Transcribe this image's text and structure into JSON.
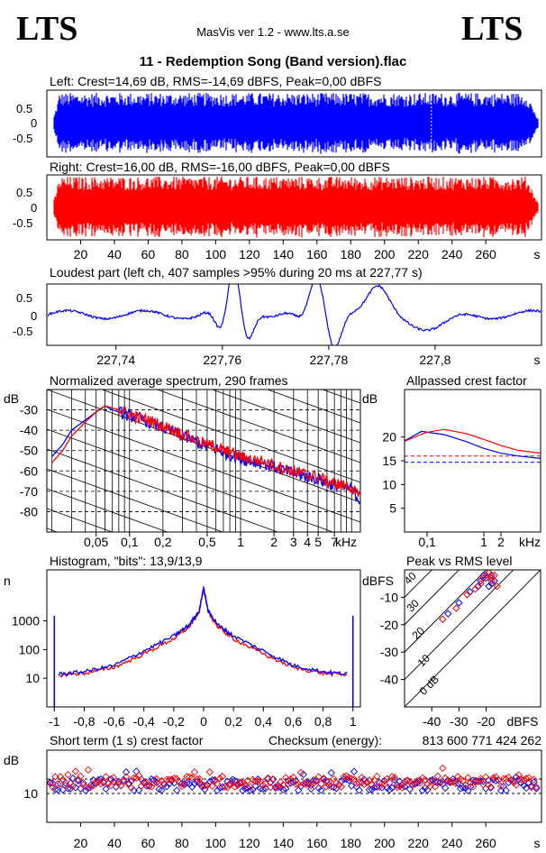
{
  "header": {
    "logo_left": "LTS",
    "logo_right": "LTS",
    "app_title": "MasVis ver 1.2 - www.lts.a.se",
    "track_title": "11 - Redemption Song (Band version).flac"
  },
  "colors": {
    "left": "#0000ff",
    "right": "#ff0000",
    "grid": "#000000",
    "background": "#ffffff"
  },
  "chart_data": [
    {
      "id": "left-waveform",
      "type": "area",
      "title": "Left: Crest=14,69 dB, RMS=-14,69 dBFS, Peak=0,00 dBFS",
      "crest_db": 14.69,
      "rms_dbfs": -14.69,
      "peak_dbfs": 0.0,
      "y_ticks": [
        "0.5",
        "0",
        "-0.5"
      ],
      "ylim": [
        -1,
        1
      ],
      "xlim": [
        0,
        293
      ],
      "marker_s": 227.77
    },
    {
      "id": "right-waveform",
      "type": "area",
      "title": "Right: Crest=16,00 dB, RMS=-16,00 dBFS, Peak=0,00 dBFS",
      "crest_db": 16.0,
      "rms_dbfs": -16.0,
      "peak_dbfs": 0.0,
      "y_ticks": [
        "0.5",
        "0",
        "-0.5"
      ],
      "ylim": [
        -1,
        1
      ],
      "x_ticks": [
        "20",
        "40",
        "60",
        "80",
        "100",
        "120",
        "140",
        "160",
        "180",
        "200",
        "220",
        "240",
        "260"
      ],
      "x_unit": "s",
      "xlim": [
        0,
        293
      ]
    },
    {
      "id": "loudest-part",
      "type": "line",
      "title": "Loudest part (left  ch, 407 samples >95% during 20 ms at 227,77 s)",
      "y_ticks": [
        "0.5",
        "0",
        "-0.5"
      ],
      "x_ticks": [
        "227,74",
        "227,76",
        "227,78",
        "227,8"
      ],
      "x_unit": "s",
      "xlim": [
        227.727,
        227.82
      ],
      "ylim": [
        -1,
        1
      ]
    },
    {
      "id": "spectrum",
      "type": "line",
      "title": "Normalized average spectrum, 290 frames",
      "ylabel": "dB",
      "y_ticks": [
        "-30",
        "-40",
        "-50",
        "-60",
        "-70",
        "-80"
      ],
      "x_ticks": [
        "0,05",
        "0,1",
        "0,2",
        "0,5",
        "1",
        "2",
        "3",
        "4",
        "5",
        "7"
      ],
      "x_unit": "kHz",
      "xscale": "log",
      "xlim": [
        0.018,
        12
      ],
      "ylim": [
        -90,
        -20
      ],
      "series": [
        {
          "name": "left",
          "x": [
            0.02,
            0.025,
            0.03,
            0.04,
            0.05,
            0.06,
            0.07,
            0.08,
            0.1,
            0.12,
            0.15,
            0.2,
            0.25,
            0.3,
            0.4,
            0.5,
            0.6,
            0.7,
            0.8,
            1.0,
            1.2,
            1.5,
            2,
            2.5,
            3,
            3.5,
            4,
            5,
            6,
            7,
            8,
            10,
            12
          ],
          "y": [
            -53,
            -47,
            -40,
            -35,
            -31,
            -28,
            -30,
            -31,
            -33,
            -34,
            -36,
            -39,
            -41,
            -43,
            -46,
            -48,
            -49,
            -51,
            -52,
            -54,
            -55,
            -56,
            -58,
            -60,
            -61,
            -62,
            -63,
            -64,
            -66,
            -67,
            -68,
            -69,
            -75
          ]
        },
        {
          "name": "right",
          "x": [
            0.02,
            0.025,
            0.03,
            0.04,
            0.05,
            0.06,
            0.07,
            0.08,
            0.1,
            0.12,
            0.15,
            0.2,
            0.25,
            0.3,
            0.4,
            0.5,
            0.6,
            0.7,
            0.8,
            1.0,
            1.2,
            1.5,
            2,
            2.5,
            3,
            3.5,
            4,
            5,
            6,
            7,
            8,
            10,
            12
          ],
          "y": [
            -56,
            -50,
            -43,
            -36,
            -31,
            -28,
            -29,
            -30,
            -32,
            -34,
            -35,
            -38,
            -40,
            -42,
            -45,
            -47,
            -48,
            -50,
            -51,
            -53,
            -54,
            -55,
            -57,
            -59,
            -60,
            -61,
            -62,
            -63,
            -65,
            -66,
            -67,
            -68,
            -74
          ]
        }
      ]
    },
    {
      "id": "allpassed-crest",
      "type": "line",
      "title": "Allpassed crest factor",
      "ylabel": "dB",
      "y_ticks": [
        "20",
        "15",
        "10",
        "5"
      ],
      "x_ticks": [
        "0,1",
        "1",
        "2"
      ],
      "x_unit": "kHz",
      "xscale": "log",
      "xlim": [
        0.04,
        10
      ],
      "ylim": [
        0,
        30
      ],
      "series": [
        {
          "name": "left",
          "x": [
            0.04,
            0.06,
            0.08,
            0.1,
            0.2,
            0.5,
            1,
            2,
            4,
            10
          ],
          "y": [
            19.2,
            20.4,
            21.2,
            21.0,
            20.5,
            19.0,
            17.6,
            16.6,
            16.0,
            15.5
          ]
        },
        {
          "name": "right",
          "x": [
            0.04,
            0.06,
            0.08,
            0.1,
            0.2,
            0.5,
            1,
            2,
            4,
            10
          ],
          "y": [
            19.1,
            20.0,
            20.6,
            21.0,
            21.6,
            20.7,
            19.5,
            18.2,
            17.2,
            16.6
          ]
        }
      ],
      "reference_lines": [
        {
          "name": "left",
          "y": 14.69
        },
        {
          "name": "right",
          "y": 16.0
        }
      ]
    },
    {
      "id": "histogram",
      "type": "line",
      "title": "Histogram, \"bits\": 13,9/13,9",
      "ylabel": "n",
      "yscale": "log",
      "y_ticks": [
        "1000",
        "100",
        "10"
      ],
      "x_ticks": [
        "-1",
        "-0,8",
        "-0,6",
        "-0,4",
        "-0,2",
        "0",
        "0,2",
        "0,4",
        "0,6",
        "0,8",
        "1"
      ],
      "xlim": [
        -1.05,
        1.05
      ],
      "ylim": [
        1,
        60000
      ],
      "series": [
        {
          "name": "left",
          "x": [
            -1,
            -0.97,
            -0.8,
            -0.6,
            -0.4,
            -0.2,
            -0.1,
            -0.03,
            0,
            0.03,
            0.1,
            0.2,
            0.4,
            0.6,
            0.8,
            0.97,
            1
          ],
          "y": [
            1500,
            14,
            17,
            28,
            90,
            300,
            700,
            2200,
            15000,
            2200,
            700,
            300,
            90,
            28,
            17,
            14,
            1500
          ]
        },
        {
          "name": "right",
          "x": [
            -1,
            -0.97,
            -0.8,
            -0.6,
            -0.4,
            -0.2,
            -0.1,
            -0.03,
            0,
            0.03,
            0.1,
            0.2,
            0.4,
            0.6,
            0.8,
            0.97,
            1
          ],
          "y": [
            1500,
            13,
            15,
            24,
            70,
            240,
            600,
            2000,
            15000,
            2000,
            600,
            240,
            70,
            24,
            15,
            13,
            1500
          ]
        }
      ]
    },
    {
      "id": "peak-vs-rms",
      "type": "scatter",
      "title": "Peak vs RMS level",
      "ylabel": "dBFS",
      "y_ticks": [
        "-10",
        "-20",
        "-30",
        "-40"
      ],
      "x_ticks": [
        "-40",
        "-30",
        "-20"
      ],
      "x_unit": "dBFS",
      "xlim": [
        -50,
        0
      ],
      "ylim": [
        -50,
        0
      ],
      "crest_line_labels": [
        "40",
        "30",
        "20",
        "10",
        "0 dB"
      ],
      "series": [
        {
          "name": "left",
          "x": [
            -34,
            -30,
            -26,
            -23,
            -22,
            -21,
            -20,
            -19,
            -18,
            -17,
            -19,
            -18
          ],
          "y": [
            -16,
            -12,
            -8,
            -6,
            -4,
            -2,
            -3,
            -1,
            -2,
            -4,
            -6,
            -5
          ]
        },
        {
          "name": "right",
          "x": [
            -36,
            -31,
            -27,
            -24,
            -22,
            -21,
            -20,
            -19,
            -18,
            -17,
            -18,
            -16
          ],
          "y": [
            -18,
            -14,
            -9,
            -7,
            -5,
            -3,
            -2,
            -1,
            -3,
            -2,
            -4,
            -6
          ]
        }
      ]
    },
    {
      "id": "short-term-crest",
      "type": "scatter",
      "title": "Short term (1 s) crest factor",
      "checksum_label": "Checksum (energy):",
      "checksum_value": "813 600 771 424 262",
      "ylabel": "dB",
      "y_ticks": [
        "10"
      ],
      "x_ticks": [
        "20",
        "40",
        "60",
        "80",
        "100",
        "120",
        "140",
        "160",
        "180",
        "200",
        "220",
        "240",
        "260"
      ],
      "x_unit": "s",
      "xlim": [
        0,
        293
      ],
      "ylim": [
        0,
        25
      ],
      "reference_lines": [
        {
          "y": 10
        },
        {
          "y": 15
        }
      ],
      "series": [
        {
          "name": "left",
          "typical": 13.0,
          "spread": 2.0
        },
        {
          "name": "right",
          "typical": 14.0,
          "spread": 2.0
        }
      ]
    }
  ]
}
